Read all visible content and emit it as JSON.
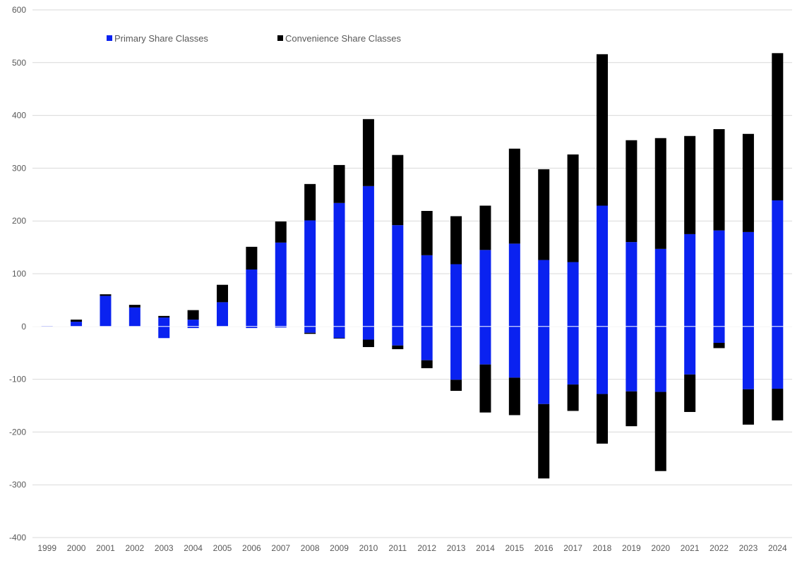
{
  "chart_data": {
    "type": "bar",
    "stacked": true,
    "categories": [
      "1999",
      "2000",
      "2001",
      "2002",
      "2003",
      "2004",
      "2005",
      "2006",
      "2007",
      "2008",
      "2009",
      "2010",
      "2011",
      "2012",
      "2013",
      "2014",
      "2015",
      "2016",
      "2017",
      "2018",
      "2019",
      "2020",
      "2021",
      "2022",
      "2023",
      "2024"
    ],
    "series": [
      {
        "name": "Primary Share Classes",
        "color": "#0a22f0",
        "positive": [
          1,
          9,
          58,
          36,
          17,
          13,
          46,
          108,
          159,
          201,
          234,
          266,
          192,
          135,
          118,
          145,
          157,
          126,
          122,
          229,
          160,
          147,
          175,
          182,
          179,
          239
        ],
        "negative": [
          0,
          0,
          0,
          0,
          -22,
          -3,
          0,
          -3,
          -2,
          -12,
          -22,
          -25,
          -36,
          -64,
          -101,
          -72,
          -97,
          -147,
          -110,
          -128,
          -123,
          -124,
          -91,
          -31,
          -119,
          -118
        ]
      },
      {
        "name": "Convenience Share Classes",
        "color": "#000000",
        "positive": [
          0,
          4,
          3,
          5,
          3,
          18,
          33,
          43,
          40,
          69,
          72,
          127,
          133,
          84,
          91,
          84,
          180,
          172,
          204,
          287,
          193,
          210,
          186,
          192,
          186,
          279
        ],
        "negative": [
          0,
          0,
          0,
          0,
          0,
          0,
          0,
          0,
          0,
          -2,
          -1,
          -14,
          -7,
          -15,
          -21,
          -91,
          -71,
          -141,
          -50,
          -94,
          -66,
          -150,
          -71,
          -10,
          -67,
          -60
        ]
      }
    ],
    "ylim": [
      -400,
      600
    ],
    "yticks": [
      "-400",
      "-300",
      "-200",
      "-100",
      "0",
      "100",
      "200",
      "300",
      "400",
      "500",
      "600"
    ],
    "grid": true,
    "legend_position": "top-left"
  }
}
